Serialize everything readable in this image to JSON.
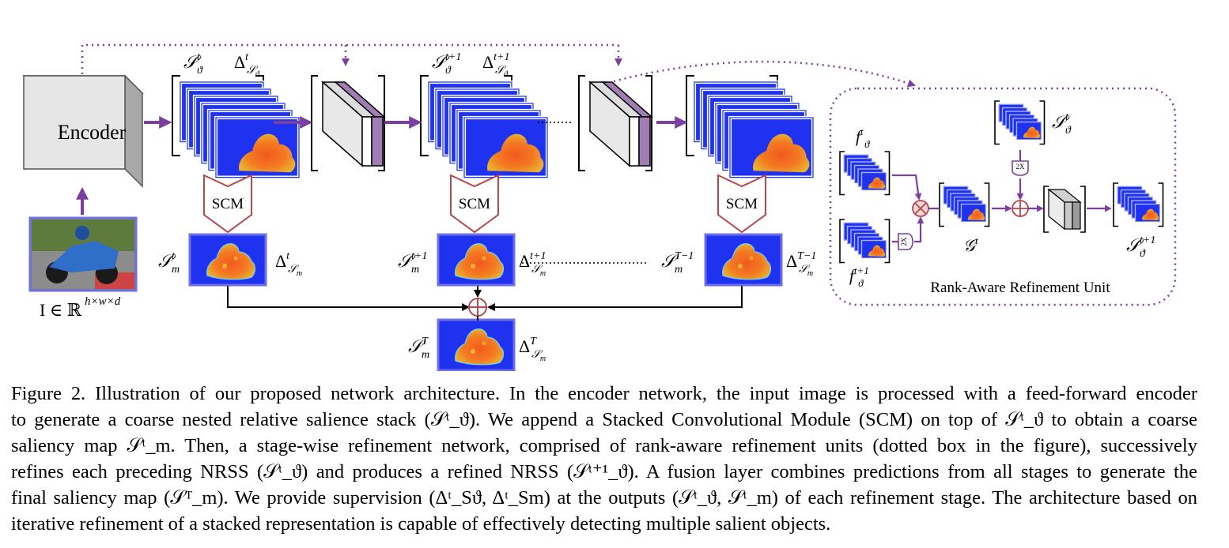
{
  "figure": {
    "encoder_label": "Encoder",
    "input_label": "I ∈ ℝ",
    "input_sup": "h×w×d",
    "scm_label": "SCM",
    "upsample_label": "2X",
    "ellipsis": "………",
    "refinement_unit_title": "Rank-Aware Refinement Unit",
    "math": {
      "S": "𝒮",
      "Delta": "Δ",
      "theta": "ϑ",
      "m": "m",
      "t": "t",
      "t1": "t+1",
      "Tm1": "T−1",
      "T": "T",
      "f": "f",
      "G": "𝒢"
    },
    "colors": {
      "purple": "#7B3FA0",
      "scm_stroke": "#B5474A",
      "map_blue": "#1E32F0",
      "map_border": "#6E6EE6"
    }
  },
  "caption": {
    "lines": [
      "Figure 2. Illustration of our proposed network architecture. In the encoder network, the input image is processed with a feed-forward encoder",
      "to generate a coarse nested relative salience stack (𝒮ᵗ_ϑ). We append a Stacked Convolutional Module (SCM) on top of 𝒮ᵗ_ϑ to obtain a coarse",
      "saliency map 𝒮ᵗ_m. Then, a stage-wise refinement network, comprised of rank-aware refinement units (dotted box in the figure), successively",
      "refines each preceding NRSS (𝒮ᵗ_ϑ) and produces a refined NRSS (𝒮ᵗ⁺¹_ϑ). A fusion layer combines predictions from all stages to generate the",
      "final saliency map (𝒮ᵀ_m). We provide supervision (Δᵗ_Sϑ, Δᵗ_Sm) at the outputs (𝒮ᵗ_ϑ, 𝒮ᵗ_m) of each refinement stage. The architecture based on",
      "iterative refinement of a stacked representation is capable of effectively detecting multiple salient objects."
    ]
  }
}
